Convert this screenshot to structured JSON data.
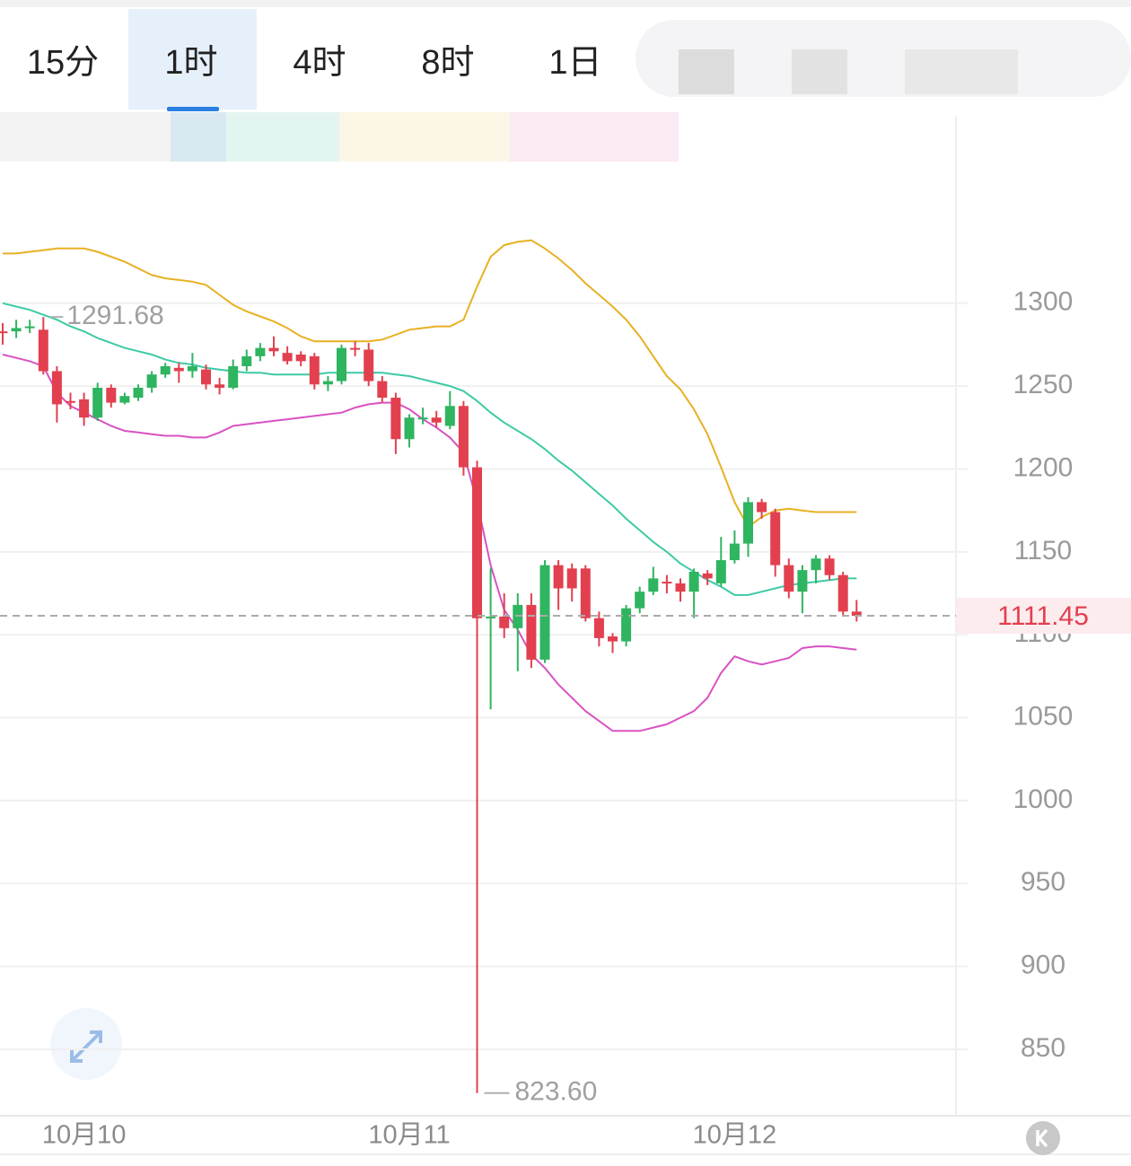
{
  "tabs": [
    "15分",
    "1时",
    "4时",
    "8时",
    "1日"
  ],
  "active_tab": 1,
  "chart_data": {
    "type": "candlestick",
    "categories": [
      null,
      null,
      null,
      null,
      null,
      null,
      "10月10",
      null,
      null,
      null,
      null,
      null,
      null,
      null,
      null,
      null,
      null,
      null,
      null,
      null,
      null,
      null,
      null,
      null,
      null,
      null,
      null,
      null,
      null,
      null,
      "10月11",
      null,
      null,
      null,
      null,
      null,
      null,
      null,
      null,
      null,
      null,
      null,
      null,
      null,
      null,
      null,
      null,
      null,
      null,
      null,
      null,
      null,
      null,
      null,
      "10月12",
      null,
      null,
      null,
      null,
      null,
      null,
      null,
      null,
      null
    ],
    "open": [
      1283,
      1283,
      1285,
      1284,
      1259,
      1241,
      1242,
      1231,
      1249,
      1240,
      1243,
      1249,
      1257,
      1261,
      1259,
      1260,
      1251,
      1249,
      1262,
      1268,
      1273,
      1270,
      1269,
      1268,
      1251,
      1253,
      1273,
      1272,
      1253,
      1243,
      1218,
      1230,
      1231,
      1226,
      1238,
      1201,
      1110,
      1111,
      1104,
      1118,
      1085,
      1142,
      1140,
      1140,
      1110,
      1099,
      1096,
      1116,
      1126,
      1132,
      1131,
      1126,
      1137,
      1131,
      1145,
      1155,
      1180,
      1174,
      1142,
      1126,
      1139,
      1146,
      1136,
      1114
    ],
    "high": [
      1288,
      1290,
      1290,
      1291.68,
      1262,
      1246,
      1246,
      1252,
      1251,
      1246,
      1251,
      1259,
      1264,
      1264,
      1270,
      1263,
      1255,
      1266,
      1272,
      1276,
      1280,
      1274,
      1271,
      1270,
      1256,
      1275,
      1277,
      1276,
      1256,
      1246,
      1233,
      1237,
      1235,
      1247,
      1241,
      1205,
      1140,
      1125,
      1125,
      1125,
      1145,
      1145,
      1143,
      1142,
      1114,
      1101,
      1118,
      1129,
      1141,
      1136,
      1134,
      1140,
      1139,
      1159,
      1163,
      1183,
      1182,
      1176,
      1146,
      1142,
      1148,
      1148,
      1138,
      1121
    ],
    "low": [
      1275,
      1279,
      1282,
      1257,
      1228,
      1236,
      1226,
      1229,
      1237,
      1239,
      1241,
      1246,
      1255,
      1252,
      1255,
      1248,
      1245,
      1248,
      1259,
      1265,
      1268,
      1263,
      1262,
      1248,
      1247,
      1251,
      1268,
      1250,
      1240,
      1209,
      1213,
      1227,
      1225,
      1224,
      1196,
      823.6,
      1055,
      1098,
      1078,
      1080,
      1083,
      1115,
      1120,
      1108,
      1093,
      1089,
      1093,
      1113,
      1124,
      1125,
      1120,
      1110,
      1130,
      1129,
      1143,
      1147,
      1170,
      1135,
      1122,
      1113,
      1131,
      1133,
      1112,
      1108
    ],
    "close": [
      1282,
      1285,
      1286,
      1259,
      1239,
      1240,
      1231,
      1249,
      1240,
      1244,
      1249,
      1257,
      1262,
      1259,
      1262,
      1251,
      1249,
      1262,
      1268,
      1273,
      1271,
      1265,
      1265,
      1251,
      1253,
      1273,
      1272,
      1253,
      1243,
      1218,
      1231,
      1231,
      1228,
      1238,
      1201,
      1110,
      1111,
      1104,
      1118,
      1085,
      1142,
      1128,
      1128,
      1110,
      1098,
      1096,
      1116,
      1126,
      1134,
      1131,
      1126,
      1138,
      1134,
      1145,
      1155,
      1180,
      1174,
      1142,
      1126,
      1139,
      1146,
      1136,
      1114,
      1111.45
    ],
    "up_color": "#2fb460",
    "down_color": "#e2404f",
    "bands": [
      {
        "color": "#e8b123",
        "values": [
          1330,
          1330,
          1331,
          1332,
          1333,
          1333,
          1333,
          1331,
          1328,
          1325,
          1321,
          1317,
          1315,
          1314,
          1313,
          1311,
          1305,
          1299,
          1295,
          1292,
          1289,
          1285,
          1280,
          1277,
          1277,
          1277,
          1277,
          1277,
          1278,
          1281,
          1284,
          1285,
          1286,
          1286,
          1290,
          1310,
          1328,
          1335,
          1337,
          1338,
          1333,
          1327,
          1320,
          1312,
          1305,
          1298,
          1290,
          1280,
          1268,
          1256,
          1248,
          1236,
          1221,
          1201,
          1180,
          1165,
          1171,
          1175,
          1176,
          1175,
          1174,
          1174,
          1174,
          1174
        ]
      },
      {
        "color": "#3dcaa6",
        "values": [
          1300,
          1298,
          1296,
          1293,
          1290,
          1286,
          1283,
          1279,
          1276,
          1273,
          1271,
          1269,
          1266,
          1264,
          1263,
          1261,
          1260,
          1259,
          1258,
          1258,
          1257,
          1257,
          1257,
          1257,
          1258,
          1258,
          1258,
          1258,
          1258,
          1257,
          1256,
          1254,
          1252,
          1250,
          1247,
          1241,
          1234,
          1228,
          1223,
          1218,
          1212,
          1205,
          1199,
          1192,
          1185,
          1178,
          1170,
          1163,
          1156,
          1150,
          1143,
          1138,
          1133,
          1129,
          1124,
          1124,
          1126,
          1128,
          1130,
          1131,
          1132,
          1133,
          1134,
          1134
        ]
      },
      {
        "color": "#d952c2",
        "values": [
          1269,
          1267,
          1265,
          1262,
          1246,
          1238,
          1234,
          1230,
          1226,
          1223,
          1222,
          1221,
          1220,
          1220,
          1219,
          1219,
          1222,
          1226,
          1227,
          1228,
          1229,
          1230,
          1231,
          1232,
          1233,
          1234,
          1237,
          1239,
          1240,
          1240,
          1236,
          1230,
          1225,
          1219,
          1210,
          1180,
          1142,
          1115,
          1103,
          1088,
          1080,
          1070,
          1062,
          1054,
          1048,
          1042,
          1042,
          1042,
          1044,
          1046,
          1050,
          1054,
          1062,
          1077,
          1087,
          1084,
          1082,
          1084,
          1086,
          1092,
          1093,
          1093,
          1092,
          1091
        ]
      }
    ],
    "high_marker": 1291.68,
    "low_marker": {
      "value": 823.6,
      "label": "823.60"
    },
    "last_price": 1111.45,
    "ylim": [
      811,
      1380
    ],
    "yticks": [
      850,
      900,
      950,
      1000,
      1050,
      1100,
      1150,
      1200,
      1250,
      1300
    ],
    "grid": true
  }
}
